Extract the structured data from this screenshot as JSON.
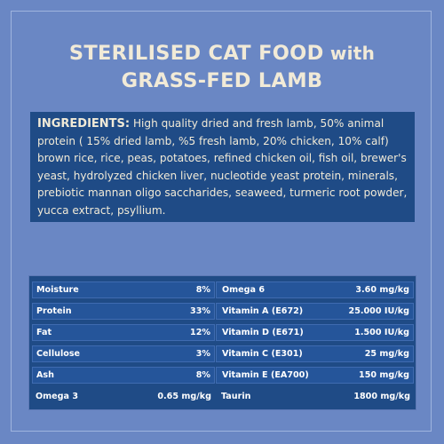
{
  "title": {
    "line1_main": "STERILISED CAT FOOD",
    "line1_with": " with",
    "line2": "GRASS-FED LAMB"
  },
  "ingredients": {
    "label": "INGREDIENTS:",
    "text": " High quality dried and fresh lamb, 50% animal protein ( 15% dried lamb, %5 fresh lamb, 20% chicken, 10% calf) brown rice, rice, peas, potatoes, refined chicken oil, fish oil, brewer's yeast, hydrolyzed chicken liver, nucleotide yeast protein, minerals, prebiotic mannan oligo saccharides, seaweed, turmeric root powder, yucca extract, psyllium."
  },
  "nutrition": {
    "left": [
      {
        "name": "Moisture",
        "value": "8%"
      },
      {
        "name": "Protein",
        "value": "33%"
      },
      {
        "name": "Fat",
        "value": "12%"
      },
      {
        "name": "Cellulose",
        "value": "3%"
      },
      {
        "name": "Ash",
        "value": "8%"
      },
      {
        "name": "Omega 3",
        "value": "0.65 mg/kg"
      }
    ],
    "right": [
      {
        "name": "Omega 6",
        "value": "3.60 mg/kg"
      },
      {
        "name": "Vitamin A (E672)",
        "value": "25.000 IU/kg"
      },
      {
        "name": "Vitamin D (E671)",
        "value": "1.500 IU/kg"
      },
      {
        "name": "Vitamin C (E301)",
        "value": "25 mg/kg"
      },
      {
        "name": "Vitamin E (EA700)",
        "value": "150 mg/kg"
      },
      {
        "name": "Taurin",
        "value": "1800 mg/kg"
      }
    ]
  }
}
